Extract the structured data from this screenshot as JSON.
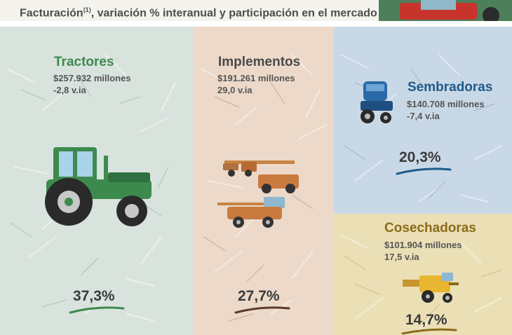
{
  "header": {
    "title": "Facturación",
    "title_sup": "(1)",
    "title_rest": ", variación % interanual y participación en el mercado"
  },
  "segments": {
    "tractores": {
      "name": "Tractores",
      "billing": "$257.932 millones",
      "variation": "-2,8 v.ia",
      "share": "37,3%",
      "color": "#3d8a4e"
    },
    "implementos": {
      "name": "Implementos",
      "billing": "$191.261 millones",
      "variation": "29,0 v.ia",
      "share": "27,7%",
      "color": "#4a4a4a"
    },
    "sembradoras": {
      "name": "Sembradoras",
      "billing": "$140.708 millones",
      "variation": "-7,4 v.ia",
      "share": "20,3%",
      "color": "#1e5a8a"
    },
    "cosechadoras": {
      "name": "Cosechadoras",
      "billing": "$101.904 millones",
      "variation": "17,5 v.ia",
      "share": "14,7%",
      "color": "#8a6c1a"
    }
  },
  "icons": [
    "tractor-icon",
    "implement-icon",
    "sprayer-icon",
    "seeder-icon",
    "combine-harvester-icon"
  ]
}
